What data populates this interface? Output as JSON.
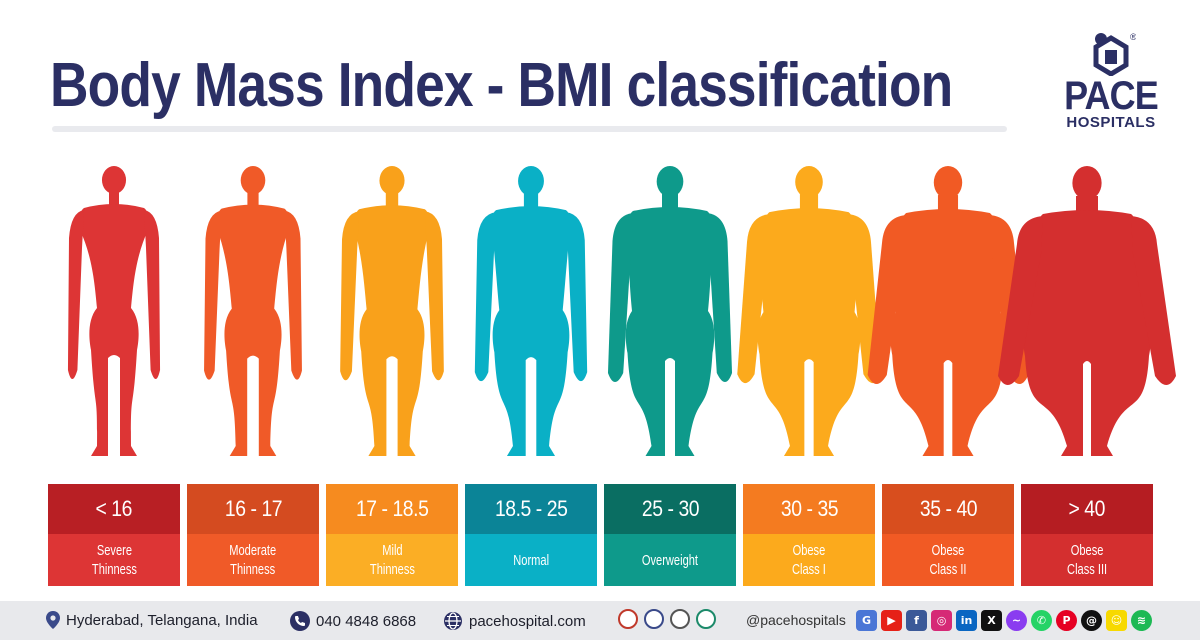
{
  "header": {
    "title": "Body Mass Index - BMI classification"
  },
  "logo": {
    "name": "PACE",
    "subtitle": "HOSPITALS",
    "registered": "®",
    "color": "#2b2f64"
  },
  "categories": [
    {
      "range": "< 16",
      "label_line1": "Severe",
      "label_line2": "Thinness",
      "figure_color": "#dd3535",
      "range_bg": "#b81f24",
      "label_bg": "#dd3535",
      "build": 0.0
    },
    {
      "range": "16 - 17",
      "label_line1": "Moderate",
      "label_line2": "Thinness",
      "figure_color": "#f05a28",
      "range_bg": "#d44b20",
      "label_bg": "#f05a28",
      "build": 0.1
    },
    {
      "range": "17 - 18.5",
      "label_line1": "Mild",
      "label_line2": "Thinness",
      "figure_color": "#f9a11b",
      "range_bg": "#f68b1f",
      "label_bg": "#fbae25",
      "build": 0.2
    },
    {
      "range": "18.5 - 25",
      "label_line1": "Normal",
      "label_line2": "",
      "figure_color": "#0ab0c6",
      "range_bg": "#0b8497",
      "label_bg": "#0ab0c6",
      "build": 0.35
    },
    {
      "range": "25 - 30",
      "label_line1": "Overweight",
      "label_line2": "",
      "figure_color": "#0e9a8b",
      "range_bg": "#0a6e62",
      "label_bg": "#0e9a8b",
      "build": 0.5
    },
    {
      "range": "30 - 35",
      "label_line1": "Obese",
      "label_line2": "Class I",
      "figure_color": "#fcaa1c",
      "range_bg": "#f47b20",
      "label_bg": "#fcaa1c",
      "build": 0.68
    },
    {
      "range": "35 - 40",
      "label_line1": "Obese",
      "label_line2": "Class II",
      "figure_color": "#f15a24",
      "range_bg": "#d84e1e",
      "label_bg": "#f15a24",
      "build": 0.84
    },
    {
      "range": "> 40",
      "label_line1": "Obese",
      "label_line2": "Class III",
      "figure_color": "#d42f2f",
      "range_bg": "#b51d22",
      "label_bg": "#d42f2f",
      "build": 1.0
    }
  ],
  "footer": {
    "location": "Hyderabad, Telangana, India",
    "phone": "040 4848 6868",
    "website": "pacehospital.com",
    "handle": "@pacehospitals",
    "socials": [
      {
        "icon": "google-business-icon",
        "glyph": "G",
        "color": "#4a76d6"
      },
      {
        "icon": "youtube-icon",
        "glyph": "▶",
        "color": "#e62117"
      },
      {
        "icon": "facebook-icon",
        "glyph": "f",
        "color": "#3b5998"
      },
      {
        "icon": "instagram-icon",
        "glyph": "◎",
        "color": "#d62976"
      },
      {
        "icon": "linkedin-icon",
        "glyph": "in",
        "color": "#0a66c2"
      },
      {
        "icon": "x-icon",
        "glyph": "X",
        "color": "#111111"
      },
      {
        "icon": "messenger-icon",
        "glyph": "~",
        "color": "#8a3cf0"
      },
      {
        "icon": "whatsapp-icon",
        "glyph": "✆",
        "color": "#25d366"
      },
      {
        "icon": "pinterest-icon",
        "glyph": "P",
        "color": "#e60023"
      },
      {
        "icon": "threads-icon",
        "glyph": "@",
        "color": "#111111"
      },
      {
        "icon": "snapchat-icon",
        "glyph": "☺",
        "color": "#f7d900"
      },
      {
        "icon": "spotify-icon",
        "glyph": "≋",
        "color": "#1db954"
      }
    ]
  }
}
